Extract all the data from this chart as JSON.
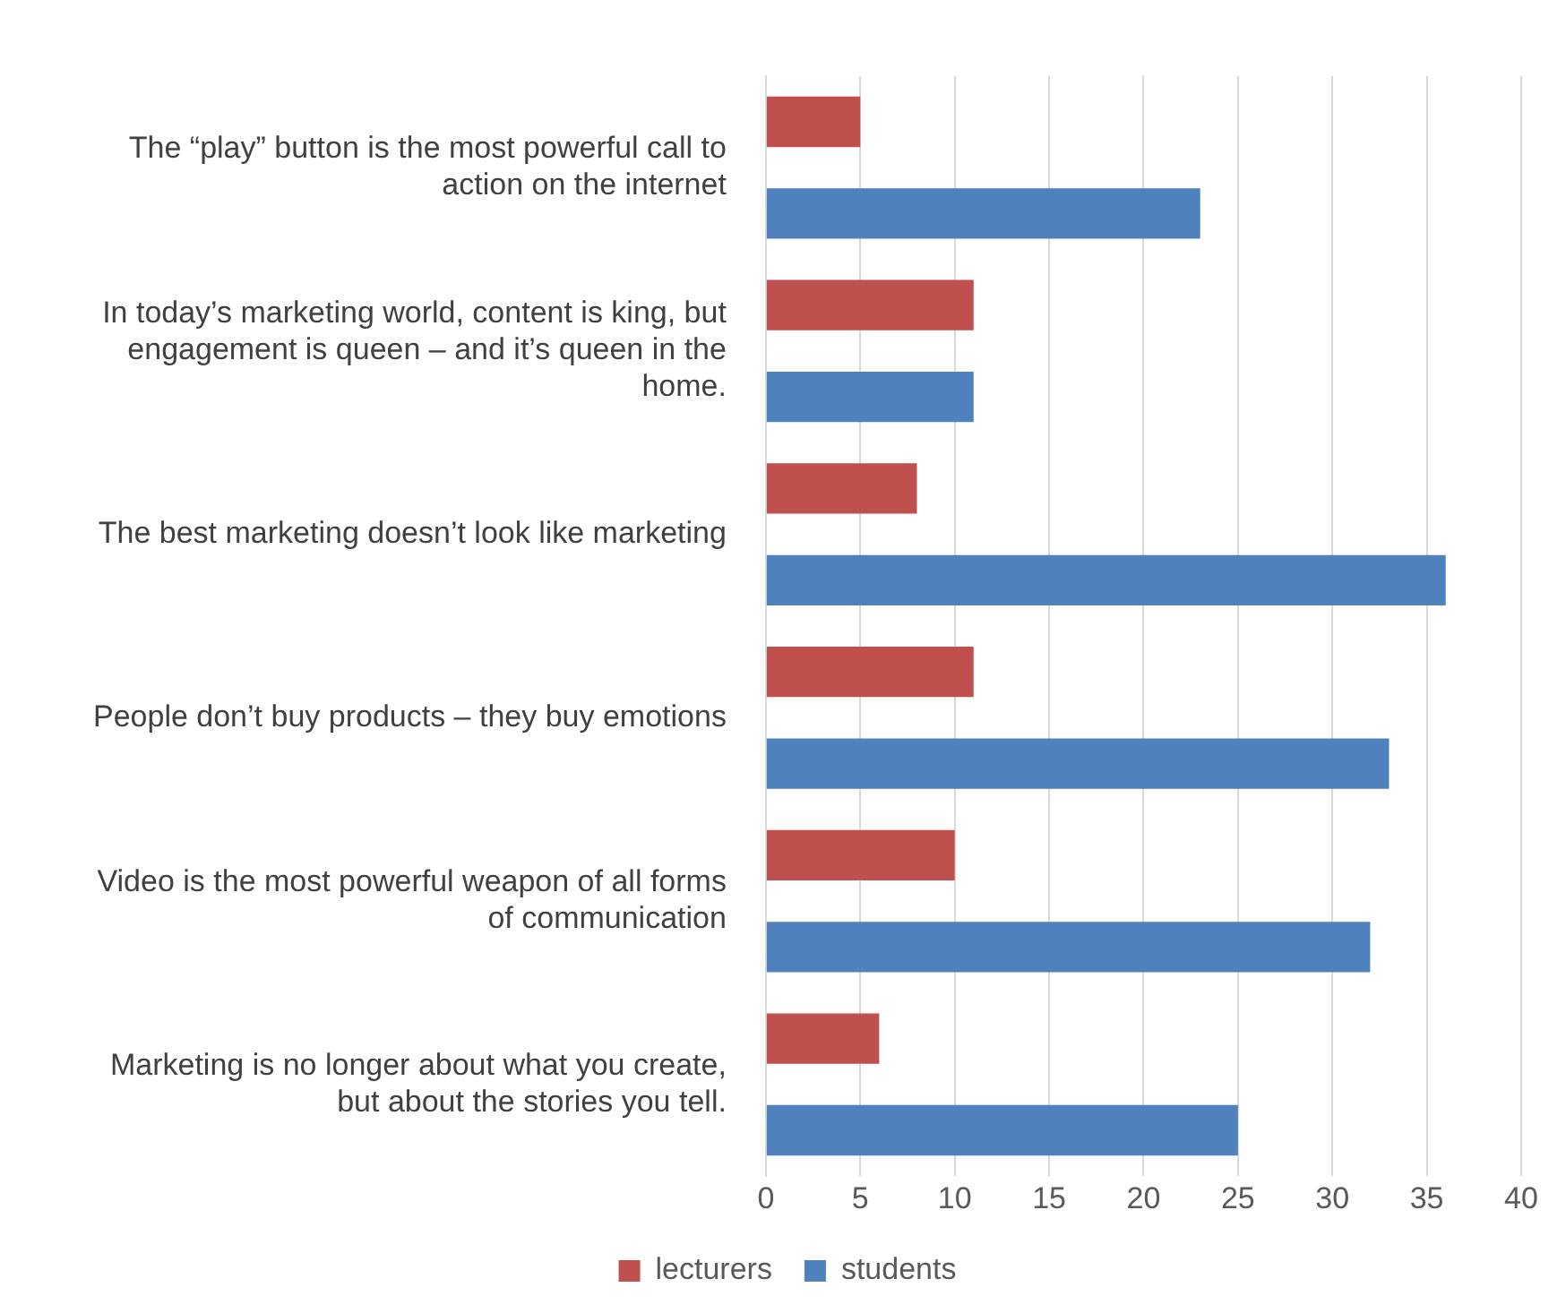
{
  "chart_data": {
    "type": "bar",
    "orientation": "horizontal",
    "categories": [
      "The “play” button is the most powerful call to action on the internet",
      "In today’s marketing world, content is king, but engagement is queen – and it’s queen in the home.",
      "The best marketing doesn’t look like marketing",
      "People don’t buy products – they buy emotions",
      "Video is the most powerful weapon of all forms of communication",
      "Marketing is no longer about what you create, but about the stories you tell."
    ],
    "series": [
      {
        "name": "lecturers",
        "color": "#c0504d",
        "values": [
          5,
          11,
          8,
          11,
          10,
          6
        ]
      },
      {
        "name": "students",
        "color": "#4f81bd",
        "values": [
          23,
          11,
          36,
          33,
          32,
          25
        ]
      }
    ],
    "xlim": [
      0,
      40
    ],
    "xticks": [
      0,
      5,
      10,
      15,
      20,
      25,
      30,
      35,
      40
    ],
    "grid": "x",
    "legend": "bottom"
  }
}
